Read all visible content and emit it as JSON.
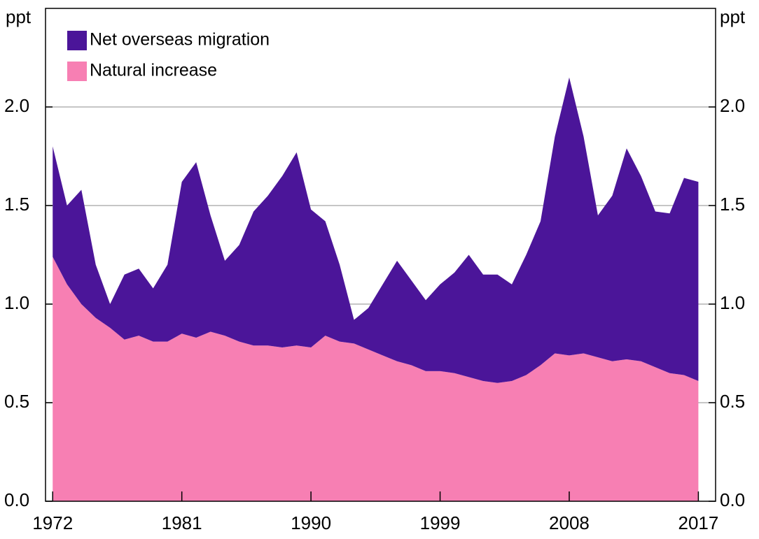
{
  "chart_data": {
    "type": "stacked_area",
    "y_label": "ppt",
    "y2_label": "ppt",
    "x": [
      1972,
      1973,
      1974,
      1975,
      1976,
      1977,
      1978,
      1979,
      1980,
      1981,
      1982,
      1983,
      1984,
      1985,
      1986,
      1987,
      1988,
      1989,
      1990,
      1991,
      1992,
      1993,
      1994,
      1995,
      1996,
      1997,
      1998,
      1999,
      2000,
      2001,
      2002,
      2003,
      2004,
      2005,
      2006,
      2007,
      2008,
      2009,
      2010,
      2011,
      2012,
      2013,
      2014,
      2015,
      2016,
      2017
    ],
    "series": [
      {
        "name": "Net overseas migration",
        "color": "#4b1599",
        "values": [
          0.56,
          0.4,
          0.58,
          0.27,
          0.12,
          0.33,
          0.34,
          0.27,
          0.39,
          0.77,
          0.89,
          0.59,
          0.38,
          0.49,
          0.68,
          0.76,
          0.87,
          0.98,
          0.7,
          0.58,
          0.39,
          0.12,
          0.21,
          0.36,
          0.51,
          0.43,
          0.36,
          0.44,
          0.51,
          0.62,
          0.54,
          0.55,
          0.49,
          0.61,
          0.73,
          1.1,
          1.41,
          1.1,
          0.72,
          0.84,
          1.07,
          0.94,
          0.79,
          0.81,
          1.0,
          1.01
        ]
      },
      {
        "name": "Natural increase",
        "color": "#f77fb3",
        "values": [
          1.24,
          1.1,
          1.0,
          0.93,
          0.88,
          0.82,
          0.84,
          0.81,
          0.81,
          0.85,
          0.83,
          0.86,
          0.84,
          0.81,
          0.79,
          0.79,
          0.78,
          0.79,
          0.78,
          0.84,
          0.81,
          0.8,
          0.77,
          0.74,
          0.71,
          0.69,
          0.66,
          0.66,
          0.65,
          0.63,
          0.61,
          0.6,
          0.61,
          0.64,
          0.69,
          0.75,
          0.74,
          0.75,
          0.73,
          0.71,
          0.72,
          0.71,
          0.68,
          0.65,
          0.64,
          0.61
        ]
      }
    ],
    "xlim": [
      1971.5,
      2018.2
    ],
    "xticks": [
      1972,
      1981,
      1990,
      1999,
      2008,
      2017
    ],
    "ylim": [
      0,
      2.5
    ],
    "yticks": [
      {
        "value": 0,
        "label": "0.0"
      },
      0.5,
      {
        "value": 1,
        "label": "1.0"
      },
      1.5,
      {
        "value": 2,
        "label": "2.0"
      }
    ],
    "y2lim": [
      0,
      2.5
    ],
    "y2ticks": [
      {
        "value": 0,
        "label": "0.0"
      },
      0.5,
      {
        "value": 1,
        "label": "1.0"
      },
      1.5,
      {
        "value": 2,
        "label": "2.0"
      }
    ],
    "grid": true,
    "legend": "upper-left"
  }
}
